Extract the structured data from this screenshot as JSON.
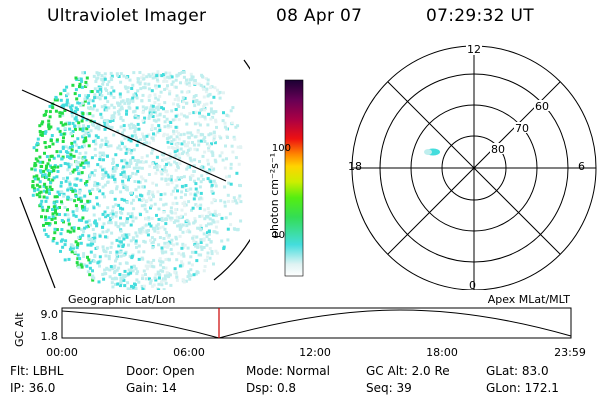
{
  "header": {
    "title": "Ultraviolet Imager",
    "date": "08 Apr 07",
    "time": "07:29:32 UT"
  },
  "colorbar": {
    "unit_label": "photon cm⁻²s⁻¹",
    "ticks": [
      "100",
      "10"
    ],
    "scale": "log"
  },
  "polar": {
    "mlt_labels": [
      "12",
      "18",
      "6",
      "0"
    ],
    "lat_labels": [
      "60",
      "70",
      "80"
    ]
  },
  "timeline": {
    "y_label": "GC Alt",
    "y_max": "9.0",
    "y_min": "1.8",
    "left_title": "Geographic Lat/Lon",
    "right_title": "Apex  MLat/MLT",
    "x_ticks": [
      "00:00",
      "06:00",
      "12:00",
      "18:00",
      "23:59"
    ]
  },
  "info": {
    "filter": "Flt: LBHL",
    "ip": "IP: 36.0",
    "door": "Door: Open",
    "gain": "Gain: 14",
    "mode": "Mode:  Normal",
    "dsp": "Dsp:     0.8",
    "gc_alt": "GC Alt: 2.0 Re",
    "seq": "Seq: 39",
    "glat": "GLat:  83.0",
    "glon": "GLon: 172.1"
  },
  "colors": {
    "green": "#22dd44",
    "cyan": "#44dddd",
    "lightcyan": "#bfeeee",
    "marker": "#cc0000"
  }
}
